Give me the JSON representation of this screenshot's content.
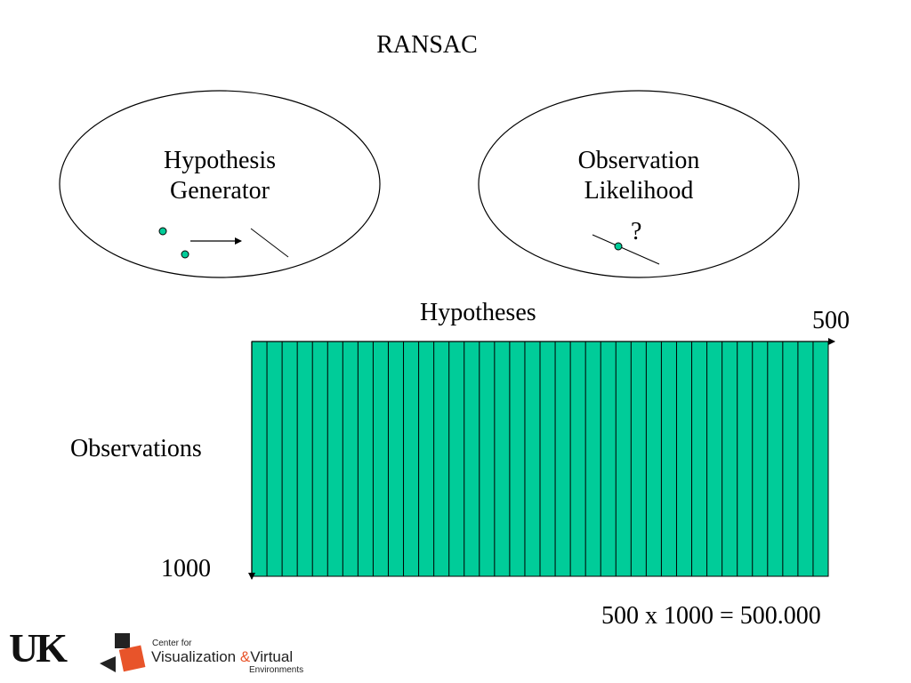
{
  "slide": {
    "title": "RANSAC",
    "hypothesis_generator": {
      "line1": "Hypothesis",
      "line2": "Generator"
    },
    "observation_likelihood": {
      "line1": "Observation",
      "line2": "Likelihood",
      "question": "?"
    },
    "hypotheses_label": "Hypotheses",
    "hypotheses_count": "500",
    "observations_label": "Observations",
    "observations_count": "1000",
    "equation": "500 x 1000 = 500.000"
  },
  "grid": {
    "columns": 38,
    "fill_color": "#00cc99"
  },
  "colors": {
    "dot": "#00cc99"
  },
  "footer": {
    "uk_logo": "UK",
    "cvve_center_for": "Center for",
    "cvve_visualization": "Visualization",
    "cvve_amp": "&",
    "cvve_virtual": "Virtual",
    "cvve_environments": "Environments"
  }
}
